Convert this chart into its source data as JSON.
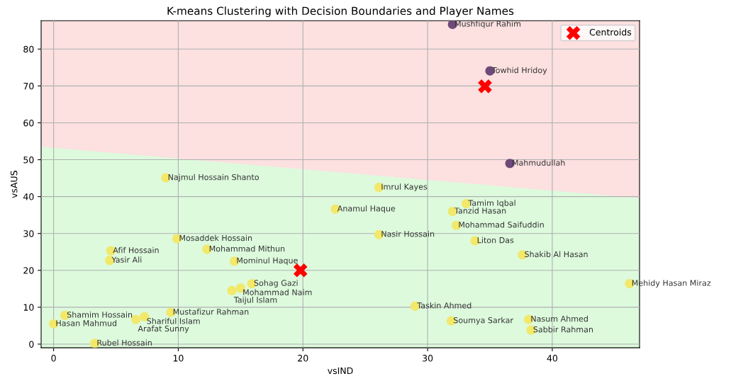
{
  "chart_data": {
    "type": "scatter",
    "title": "K-means Clustering with Decision Boundaries and Player Names",
    "xlabel": "vsIND",
    "ylabel": "vsAUS",
    "xlim": [
      -1,
      47
    ],
    "ylim": [
      -1,
      87.7
    ],
    "xticks": [
      0,
      10,
      20,
      30,
      40
    ],
    "yticks": [
      0,
      10,
      20,
      30,
      40,
      50,
      60,
      70,
      80
    ],
    "grid": true,
    "legend": "top right",
    "marker": "circle",
    "bands": [
      {
        "axis": "y",
        "from": -1,
        "to": 0,
        "color": "#ddfadd"
      },
      {
        "axis": "y",
        "from": 0,
        "to": 87.7,
        "color": "#fde0e0"
      }
    ],
    "series": [
      {
        "type": "area",
        "color": "#ddfadd",
        "marker": "none",
        "x": [
          -1,
          47
        ],
        "values": [
          53.5,
          39.6
        ]
      },
      {
        "color": "#6e4a7a",
        "x": [
          32,
          35.0,
          36.6
        ],
        "values": [
          86.7,
          74.1,
          49
        ]
      },
      {
        "color": "#f2e86a",
        "x": [
          9.0,
          26.1,
          33.1,
          22.6,
          32.0,
          32.3,
          26.1,
          33.8,
          37.6,
          46.2,
          29.0,
          31.9,
          38.1,
          38.3,
          9.9,
          4.6,
          4.5,
          12.3,
          14.5,
          15.9,
          15.0,
          14.3,
          9.4,
          7.3,
          6.6,
          0.9,
          0,
          3.3
        ],
        "values": [
          45.1,
          42.5,
          38.1,
          36.6,
          36.0,
          32.2,
          29.7,
          28.0,
          24.2,
          16.4,
          10.3,
          6.3,
          6.7,
          3.8,
          28.6,
          25.3,
          22.7,
          25.7,
          22.5,
          16.4,
          15.2,
          14.5,
          8.6,
          7.4,
          6.7,
          7.8,
          5.5,
          0.2
        ]
      },
      {
        "name": "Centroids",
        "color": "#ff0000",
        "marker": "cross",
        "x": [
          19.8,
          34.6
        ],
        "values": [
          20.0,
          69.9
        ]
      }
    ],
    "annotations": [
      {
        "text": "Mushfiqur Rahim",
        "x": 32,
        "y": 86.7
      },
      {
        "text": "Towhid Hridoy",
        "x": 35.0,
        "y": 74.1
      },
      {
        "text": "Mahmudullah",
        "x": 36.6,
        "y": 49
      },
      {
        "text": "Najmul Hossain Shanto",
        "x": 9.0,
        "y": 45.1
      },
      {
        "text": "Imrul Kayes",
        "x": 26.1,
        "y": 42.5
      },
      {
        "text": "Tamim Iqbal",
        "x": 33.1,
        "y": 38.1
      },
      {
        "text": "Anamul Haque",
        "x": 22.6,
        "y": 36.6
      },
      {
        "text": "Tanzid Hasan",
        "x": 32.0,
        "y": 36.0
      },
      {
        "text": "Mohammad Saifuddin",
        "x": 32.3,
        "y": 32.2
      },
      {
        "text": "Nasir Hossain",
        "x": 26.1,
        "y": 29.7
      },
      {
        "text": "Liton Das",
        "x": 33.8,
        "y": 28.0
      },
      {
        "text": "Shakib Al Hasan",
        "x": 37.6,
        "y": 24.2
      },
      {
        "text": "Mehidy Hasan Miraz",
        "x": 46.2,
        "y": 16.4
      },
      {
        "text": "Taskin Ahmed",
        "x": 29.0,
        "y": 10.3
      },
      {
        "text": "Soumya Sarkar",
        "x": 31.9,
        "y": 6.3
      },
      {
        "text": "Nasum Ahmed",
        "x": 38.1,
        "y": 6.7
      },
      {
        "text": "Sabbir Rahman",
        "x": 38.3,
        "y": 3.8
      },
      {
        "text": "Mosaddek Hossain",
        "x": 9.9,
        "y": 28.6
      },
      {
        "text": "Afif Hossain",
        "x": 4.6,
        "y": 25.3
      },
      {
        "text": "Yasir Ali",
        "x": 4.5,
        "y": 22.7
      },
      {
        "text": "Mohammad Mithun",
        "x": 12.3,
        "y": 25.7
      },
      {
        "text": "Mominul Haque",
        "x": 14.5,
        "y": 22.5
      },
      {
        "text": "Sohag Gazi",
        "x": 15.9,
        "y": 16.4
      },
      {
        "text": "Mohammad Naim",
        "x": 15.0,
        "y": 15.2
      },
      {
        "text": "Taijul Islam",
        "x": 14.3,
        "y": 14.5
      },
      {
        "text": "Mustafizur Rahman",
        "x": 9.4,
        "y": 8.6
      },
      {
        "text": "Shariful Islam",
        "x": 7.3,
        "y": 7.4
      },
      {
        "text": "Arafat Sunny",
        "x": 6.6,
        "y": 6.7
      },
      {
        "text": "Shamim Hossain",
        "x": 0.9,
        "y": 7.8
      },
      {
        "text": "Hasan Mahmud",
        "x": 0,
        "y": 5.5
      },
      {
        "text": "Rubel Hossain",
        "x": 3.3,
        "y": 0.2
      }
    ]
  }
}
